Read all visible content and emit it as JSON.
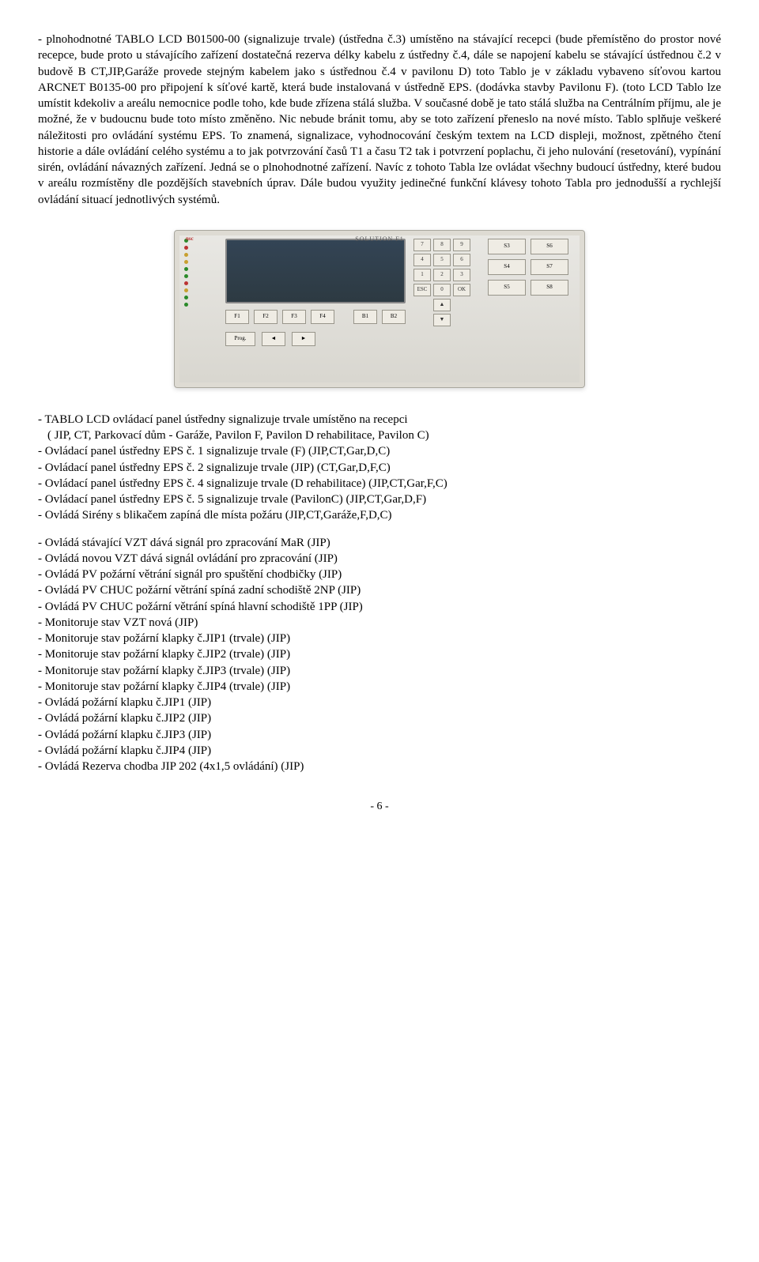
{
  "main_paragraph": "- plnohodnotné TABLO LCD B01500-00 (signalizuje trvale) (ústředna č.3) umístěno na stávající recepci (bude přemístěno do prostor nové recepce, bude proto u stávajícího zařízení dostatečná rezerva délky kabelu z ústředny č.4, dále se napojení kabelu se stávající ústřednou č.2 v budově B CT,JIP,Garáže provede stejným kabelem jako s ústřednou č.4 v pavilonu D) toto Tablo je v základu vybaveno síťovou kartou ARCNET B0135-00 pro připojení k síťové kartě, která bude instalovaná v ústředně EPS. (dodávka stavby Pavilonu F). (toto LCD Tablo lze umístit kdekoliv a areálu nemocnice podle toho, kde bude zřízena stálá služba. V současné době je tato stálá služba na Centrálním příjmu, ale je možné, že v budoucnu bude toto místo změněno. Nic nebude bránit tomu, aby se toto zařízení přeneslo na nové místo. Tablo splňuje veškeré náležitosti pro ovládání systému EPS. To znamená, signalizace, vyhodnocování českým textem na LCD displeji, možnost, zpětného čtení historie a dále ovládání celého systému a to jak potvrzování časů T1 a času T2 tak i potvrzení poplachu, či jeho nulování (resetování), vypínání sirén, ovládání návazných zařízení. Jedná se o plnohodnotné zařízení. Navíc z tohoto Tabla lze ovládat všechny budoucí ústředny, které budou v areálu rozmístěny dle pozdějších stavebních úprav. Dále budou využity jedinečné funkční klávesy tohoto Tabla pro jednodušší a rychlejší ovládání situací jednotlivých systémů.",
  "device": {
    "brand": "nsc",
    "title": "SOLUTION F1",
    "keypad": [
      "7",
      "8",
      "9",
      "4",
      "5",
      "6",
      "1",
      "2",
      "3",
      "ESC",
      "0",
      "OK"
    ],
    "fn": [
      "F1",
      "F2",
      "F3",
      "F4"
    ],
    "b": [
      "B1",
      "B2"
    ],
    "soft": [
      "S3",
      "S6",
      "S4",
      "S7",
      "S5",
      "S8"
    ],
    "prog": "Prog.",
    "arrows": [
      "◄",
      "►",
      "▲",
      "▼"
    ]
  },
  "block1": [
    "- TABLO LCD ovládací panel ústředny signalizuje trvale umístěno na recepci",
    "  ( JIP, CT, Parkovací dům - Garáže, Pavilon F, Pavilon D rehabilitace, Pavilon C)",
    "- Ovládací panel ústředny EPS č. 1 signalizuje trvale (F) (JIP,CT,Gar,D,C)",
    "- Ovládací panel ústředny EPS č. 2 signalizuje trvale (JIP) (CT,Gar,D,F,C)",
    "- Ovládací panel ústředny EPS č. 4 signalizuje trvale (D rehabilitace) (JIP,CT,Gar,F,C)",
    "- Ovládací panel ústředny EPS č. 5 signalizuje trvale (PavilonC) (JIP,CT,Gar,D,F)",
    "- Ovládá Sirény s blikačem zapíná dle místa požáru (JIP,CT,Garáže,F,D,C)"
  ],
  "block2": [
    "- Ovládá stávající VZT dává signál pro zpracování MaR (JIP)",
    "- Ovládá novou VZT dává signál ovládání pro zpracování (JIP)",
    "- Ovládá PV požární větrání signál pro spuštění chodbičky (JIP)",
    "- Ovládá PV CHUC požární větrání spíná zadní schodiště 2NP (JIP)",
    "- Ovládá PV CHUC požární větrání spíná hlavní schodiště 1PP (JIP)",
    "- Monitoruje stav VZT nová (JIP)",
    "- Monitoruje stav požární klapky č.JIP1 (trvale) (JIP)",
    "- Monitoruje stav požární klapky č.JIP2 (trvale) (JIP)",
    "- Monitoruje stav požární klapky č.JIP3 (trvale) (JIP)",
    "- Monitoruje stav požární klapky č.JIP4 (trvale) (JIP)",
    "- Ovládá požární klapku č.JIP1 (JIP)",
    "- Ovládá požární klapku č.JIP2 (JIP)",
    "- Ovládá požární klapku č.JIP3 (JIP)",
    "- Ovládá požární klapku č.JIP4 (JIP)",
    "- Ovládá Rezerva chodba JIP 202 (4x1,5 ovládání) (JIP)"
  ],
  "footer": "- 6 -"
}
